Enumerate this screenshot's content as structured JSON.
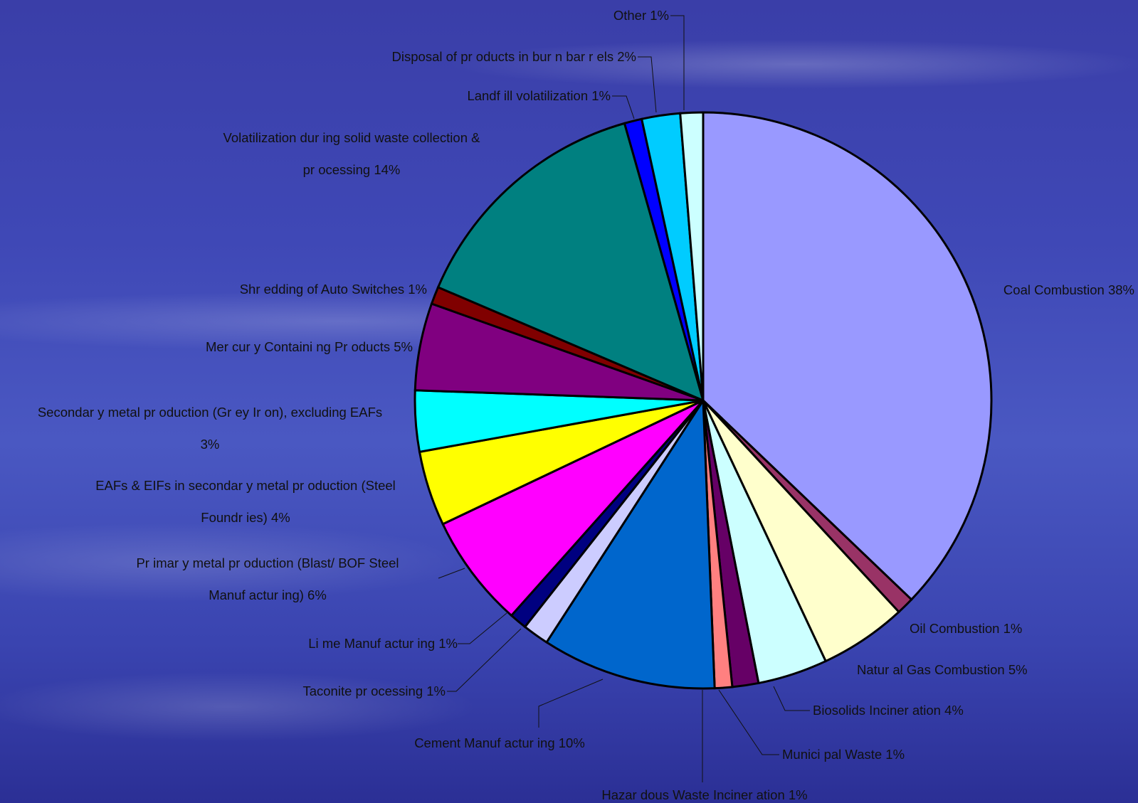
{
  "chart_data": {
    "type": "pie",
    "start_position": "12 o'clock, clockwise",
    "slices": [
      {
        "label": "Coal Combustion 38%",
        "value": 38,
        "color": "#9999ff"
      },
      {
        "label": "Oil Combustion 1%",
        "value": 1,
        "color": "#993366"
      },
      {
        "label": "Natur al Gas Combustion 5%",
        "value": 5,
        "color": "#ffffcc"
      },
      {
        "label": "Biosolids Inciner ation 4%",
        "value": 4,
        "color": "#ccffff"
      },
      {
        "label": "Munici pal Waste 1%",
        "value": 1.5,
        "color": "#660066"
      },
      {
        "label": "Hazar dous Waste Inciner ation 1%",
        "value": 1,
        "color": "#ff8080"
      },
      {
        "label": "Cement Manuf actur ing 10%",
        "value": 10,
        "color": "#0066cc"
      },
      {
        "label": "Taconite pr ocessing 1%",
        "value": 1.5,
        "color": "#ccccff"
      },
      {
        "label": "Li me Manuf actur ing 1%",
        "value": 1,
        "color": "#000080"
      },
      {
        "label": "Pr imar y metal pr oduction (Blast/ BOF Steel Manuf actur ing) 6%",
        "value": 6.5,
        "color": "#ff00ff"
      },
      {
        "label": "EAFs & EIFs in secondar y metal pr oduction (Steel Foundr ies) 4%",
        "value": 4.3,
        "color": "#ffff00"
      },
      {
        "label": "Secondar y metal pr oduction (Gr ey Ir on), excluding EAFs 3%",
        "value": 3.5,
        "color": "#00ffff"
      },
      {
        "label": "Mer cur y Containi ng Pr oducts 5%",
        "value": 5,
        "color": "#800080"
      },
      {
        "label": "Shr edding of Auto Switches 1%",
        "value": 1,
        "color": "#800000"
      },
      {
        "label": "Volatilization dur ing solid waste collection & pr ocessing 14%",
        "value": 14.5,
        "color": "#008080"
      },
      {
        "label": "Landf ill volatilization 1%",
        "value": 1,
        "color": "#0000ff"
      },
      {
        "label": "Disposal of pr oducts in bur n bar r els 2%",
        "value": 2.2,
        "color": "#00ccff"
      },
      {
        "label": "Other 1%",
        "value": 1.3,
        "color": "#ccffff"
      }
    ]
  }
}
